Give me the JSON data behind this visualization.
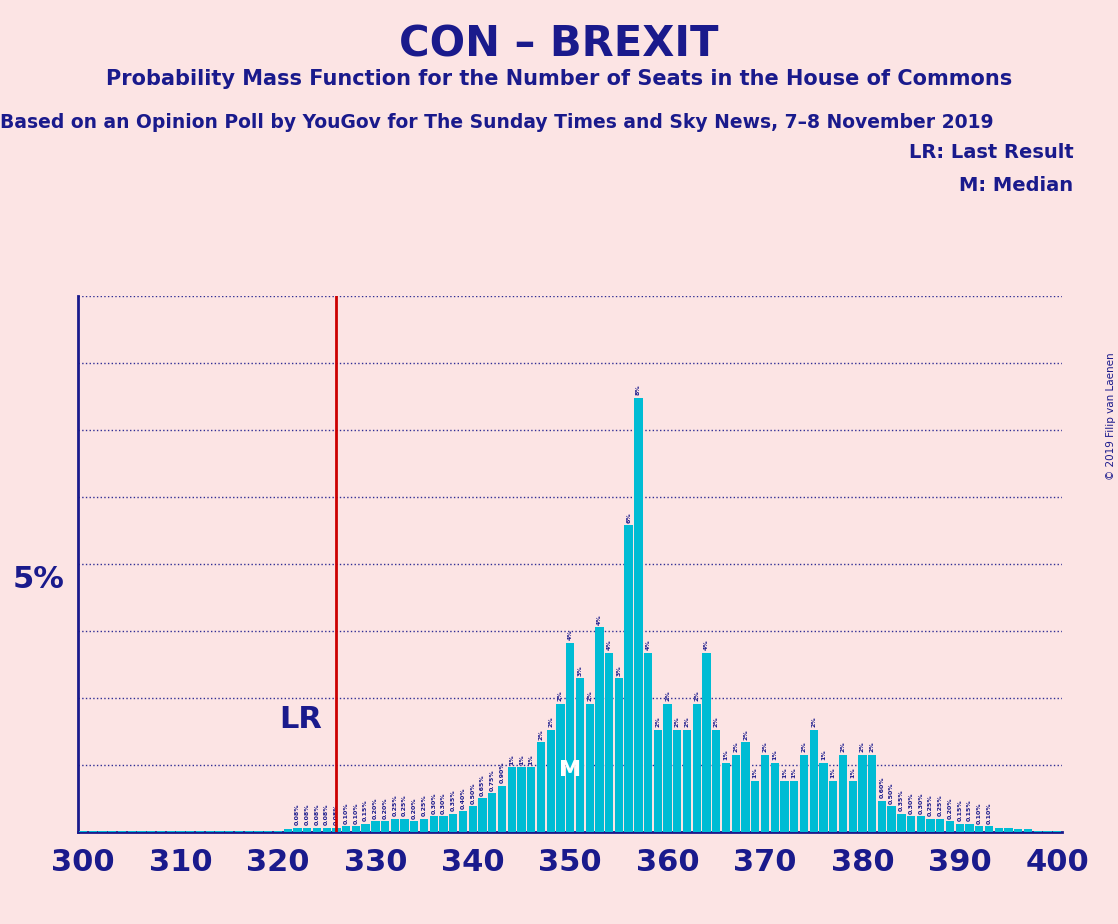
{
  "title": "CON – BREXIT",
  "subtitle": "Probability Mass Function for the Number of Seats in the House of Commons",
  "subtitle2": "Based on an Opinion Poll by YouGov for The Sunday Times and Sky News, 7–8 November 2019",
  "copyright": "© 2019 Filip van Laenen",
  "background_color": "#fce4e4",
  "bar_color": "#00bcd4",
  "axis_color": "#1a1a8c",
  "lr_line_color": "#cc0000",
  "lr_value": 326,
  "median_value": 350,
  "xlabel_color": "#1a1a8c",
  "grid_color": "#1a1a8c",
  "xmin": 299.5,
  "xmax": 400.5,
  "ytick_label": "5%",
  "y5pct": 5.0,
  "ymax": 10.5,
  "seats": [
    300,
    301,
    302,
    303,
    304,
    305,
    306,
    307,
    308,
    309,
    310,
    311,
    312,
    313,
    314,
    315,
    316,
    317,
    318,
    319,
    320,
    321,
    322,
    323,
    324,
    325,
    326,
    327,
    328,
    329,
    330,
    331,
    332,
    333,
    334,
    335,
    336,
    337,
    338,
    339,
    340,
    341,
    342,
    343,
    344,
    345,
    346,
    347,
    348,
    349,
    350,
    351,
    352,
    353,
    354,
    355,
    356,
    357,
    358,
    359,
    360,
    361,
    362,
    363,
    364,
    365,
    366,
    367,
    368,
    369,
    370,
    371,
    372,
    373,
    374,
    375,
    376,
    377,
    378,
    379,
    380,
    381,
    382,
    383,
    384,
    385,
    386,
    387,
    388,
    389,
    390,
    391,
    392,
    393,
    394,
    395,
    396,
    397,
    398,
    399,
    400
  ],
  "probs": [
    0.01,
    0.01,
    0.01,
    0.01,
    0.01,
    0.01,
    0.01,
    0.01,
    0.01,
    0.01,
    0.01,
    0.01,
    0.01,
    0.01,
    0.01,
    0.01,
    0.01,
    0.01,
    0.01,
    0.01,
    0.01,
    0.05,
    0.08,
    0.08,
    0.08,
    0.08,
    0.08,
    0.1,
    0.1,
    0.15,
    0.2,
    0.2,
    0.25,
    0.25,
    0.2,
    0.25,
    0.3,
    0.3,
    0.35,
    0.4,
    0.5,
    0.65,
    0.75,
    0.9,
    1.26,
    1.26,
    1.26,
    1.75,
    2.0,
    2.5,
    3.7,
    3.0,
    2.5,
    4.0,
    3.5,
    3.0,
    6.0,
    8.5,
    3.5,
    2.0,
    2.5,
    2.0,
    2.0,
    2.5,
    3.5,
    2.0,
    1.35,
    1.5,
    1.75,
    1.0,
    1.5,
    1.35,
    1.0,
    1.0,
    1.5,
    2.0,
    1.35,
    1.0,
    1.5,
    1.0,
    1.5,
    1.5,
    0.6,
    0.5,
    0.35,
    0.3,
    0.3,
    0.25,
    0.25,
    0.2,
    0.15,
    0.15,
    0.1,
    0.1,
    0.07,
    0.07,
    0.05,
    0.05,
    0.01,
    0.01,
    0.01
  ]
}
